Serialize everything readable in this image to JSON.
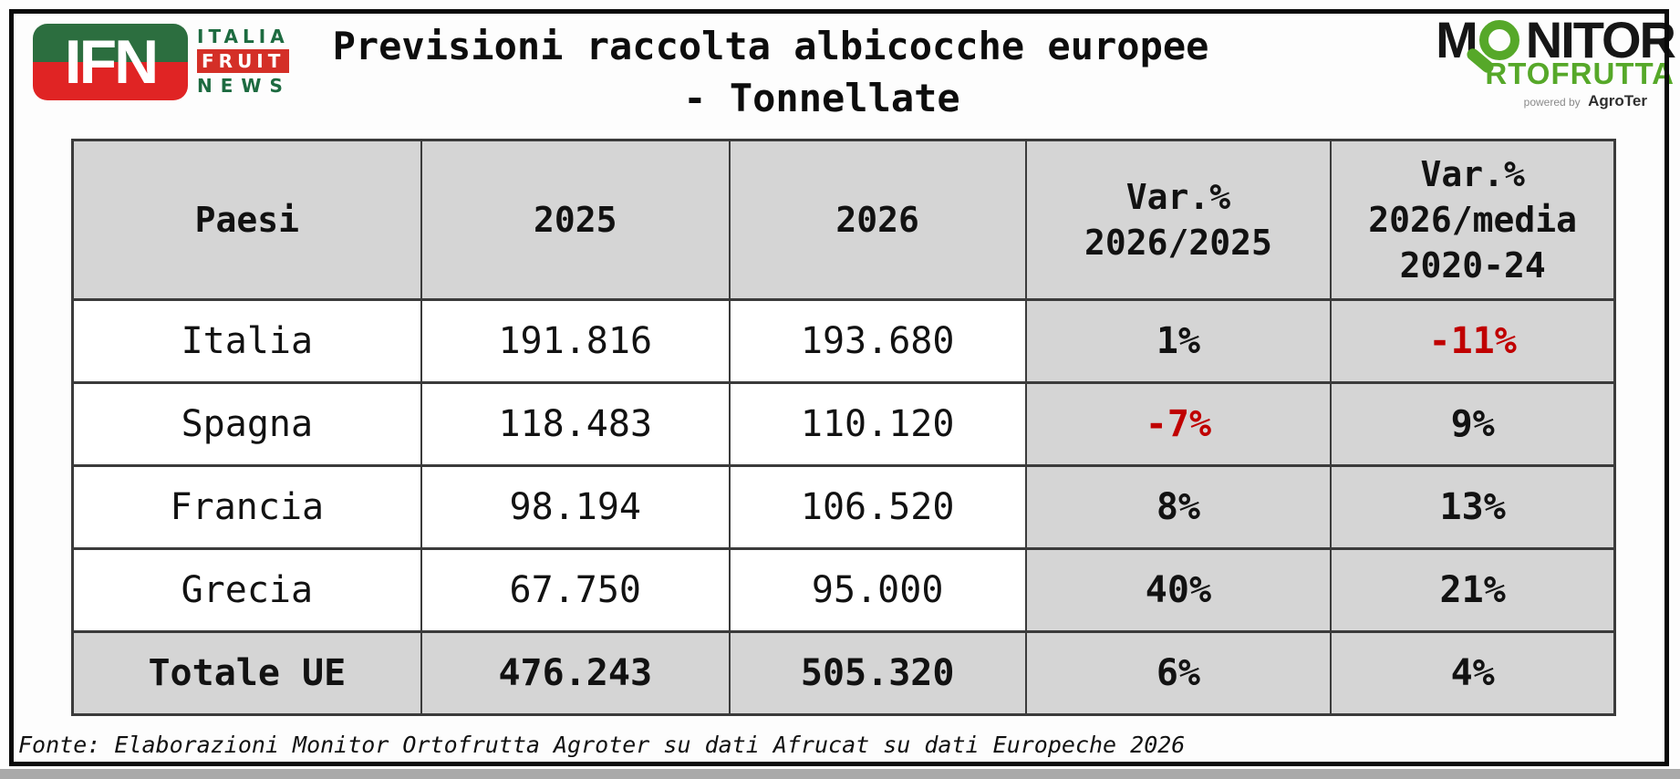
{
  "colors": {
    "canvas-bg": "#fdfdfd",
    "frame-border": "#0a0a0a",
    "cell-gray": "#d5d5d5",
    "grid-border": "#3b3b3b",
    "text-dark": "#121212",
    "negative-red": "#c00000",
    "ifn-green": "#2c6e3f",
    "ifn-red": "#e02424",
    "ifn-text-green": "#1d6b40",
    "fruit-box-red": "#d42f27",
    "monitor-black": "#161616",
    "monitor-green": "#56a829",
    "powered-gray": "#8a8a8a",
    "bottom-strip": "#a9a9a9"
  },
  "header": {
    "title_line1": "Previsioni raccolta albicocche europee",
    "title_line2": "- Tonnellate",
    "ifn_logo": {
      "acronym": "IFN",
      "word1": "ITALIA",
      "word2": "FRUIT",
      "word3": "NEWS"
    },
    "monitor_logo": {
      "prefix": "M",
      "suffix": "NITOR",
      "second_line": "RTOFRUTTA",
      "powered_by": "powered by",
      "brand": "AgroTer"
    }
  },
  "table": {
    "columns": [
      "Paesi",
      "2025",
      "2026",
      "Var.%\n2026/2025",
      "Var.%\n2026/media\n2020-24"
    ],
    "rows": [
      {
        "paese": "Italia",
        "y2025": "191.816",
        "y2026": "193.680",
        "var_2026_2025": "1%",
        "var_2026_media": "-11%"
      },
      {
        "paese": "Spagna",
        "y2025": "118.483",
        "y2026": "110.120",
        "var_2026_2025": "-7%",
        "var_2026_media": "9%"
      },
      {
        "paese": "Francia",
        "y2025": "98.194",
        "y2026": "106.520",
        "var_2026_2025": "8%",
        "var_2026_media": "13%"
      },
      {
        "paese": "Grecia",
        "y2025": "67.750",
        "y2026": "95.000",
        "var_2026_2025": "40%",
        "var_2026_media": "21%"
      }
    ],
    "total_row": {
      "paese": "Totale UE",
      "y2025": "476.243",
      "y2026": "505.320",
      "var_2026_2025": "6%",
      "var_2026_media": "4%"
    }
  },
  "footer": {
    "source": "Fonte: Elaborazioni Monitor Ortofrutta Agroter su dati Afrucat su dati Europeche 2026"
  },
  "chart_data": {
    "type": "table",
    "title": "Previsioni raccolta albicocche europee - Tonnellate",
    "units": "tonnellate",
    "columns": [
      "Paesi",
      "2025",
      "2026",
      "Var.% 2026/2025",
      "Var.% 2026/media 2020-24"
    ],
    "rows": [
      [
        "Italia",
        191816,
        193680,
        "1%",
        "-11%"
      ],
      [
        "Spagna",
        118483,
        110120,
        "-7%",
        "9%"
      ],
      [
        "Francia",
        98194,
        106520,
        "8%",
        "13%"
      ],
      [
        "Grecia",
        67750,
        95000,
        "40%",
        "21%"
      ],
      [
        "Totale UE",
        476243,
        505320,
        "6%",
        "4%"
      ]
    ],
    "negative_values_red": [
      "Italia Var.% 2026/media 2020-24 = -11%",
      "Spagna Var.% 2026/2025 = -7%"
    ],
    "source": "Fonte: Elaborazioni Monitor Ortofrutta Agroter su dati Afrucat su dati Europeche 2026"
  }
}
